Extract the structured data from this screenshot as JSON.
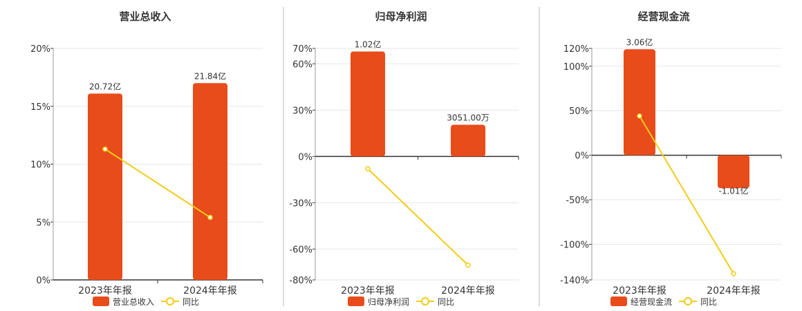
{
  "colors": {
    "bar": "#e84c1b",
    "line": "#f2cc16",
    "grid": "#e6e6e6",
    "axis": "#333333",
    "divider": "#bbbbbb",
    "text": "#333333"
  },
  "legend": {
    "yoy_label": "同比"
  },
  "chart_data": [
    {
      "type": "bar",
      "title": "营业总收入",
      "categories": [
        "2023年年报",
        "2024年年报"
      ],
      "series": [
        {
          "name": "营业总收入",
          "type": "bar",
          "values": [
            16.1,
            17.0
          ],
          "labels": [
            "20.72亿",
            "21.84亿"
          ]
        },
        {
          "name": "同比",
          "type": "line",
          "values": [
            11.3,
            5.4
          ]
        }
      ],
      "yticks": [
        0,
        5,
        10,
        15,
        20
      ],
      "ylim": [
        0,
        20
      ],
      "tick_suffix": "%"
    },
    {
      "type": "bar",
      "title": "归母净利润",
      "categories": [
        "2023年年报",
        "2024年年报"
      ],
      "series": [
        {
          "name": "归母净利润",
          "type": "bar",
          "values": [
            68,
            20.5
          ],
          "labels": [
            "1.02亿",
            "3051.00万"
          ]
        },
        {
          "name": "同比",
          "type": "line",
          "values": [
            -8,
            -70.5
          ]
        }
      ],
      "yticks": [
        -80,
        -60,
        -30,
        0,
        30,
        60,
        70
      ],
      "ylim": [
        -80,
        70
      ],
      "tick_suffix": "%"
    },
    {
      "type": "bar",
      "title": "经营现金流",
      "categories": [
        "2023年年报",
        "2024年年报"
      ],
      "series": [
        {
          "name": "经营现金流",
          "type": "bar",
          "values": [
            119,
            -37
          ],
          "labels": [
            "3.06亿",
            "-1.01亿"
          ]
        },
        {
          "name": "同比",
          "type": "line",
          "values": [
            44,
            -133
          ]
        }
      ],
      "yticks": [
        -140,
        -100,
        -50,
        0,
        50,
        100,
        120
      ],
      "ylim": [
        -140,
        120
      ],
      "tick_suffix": "%"
    }
  ]
}
